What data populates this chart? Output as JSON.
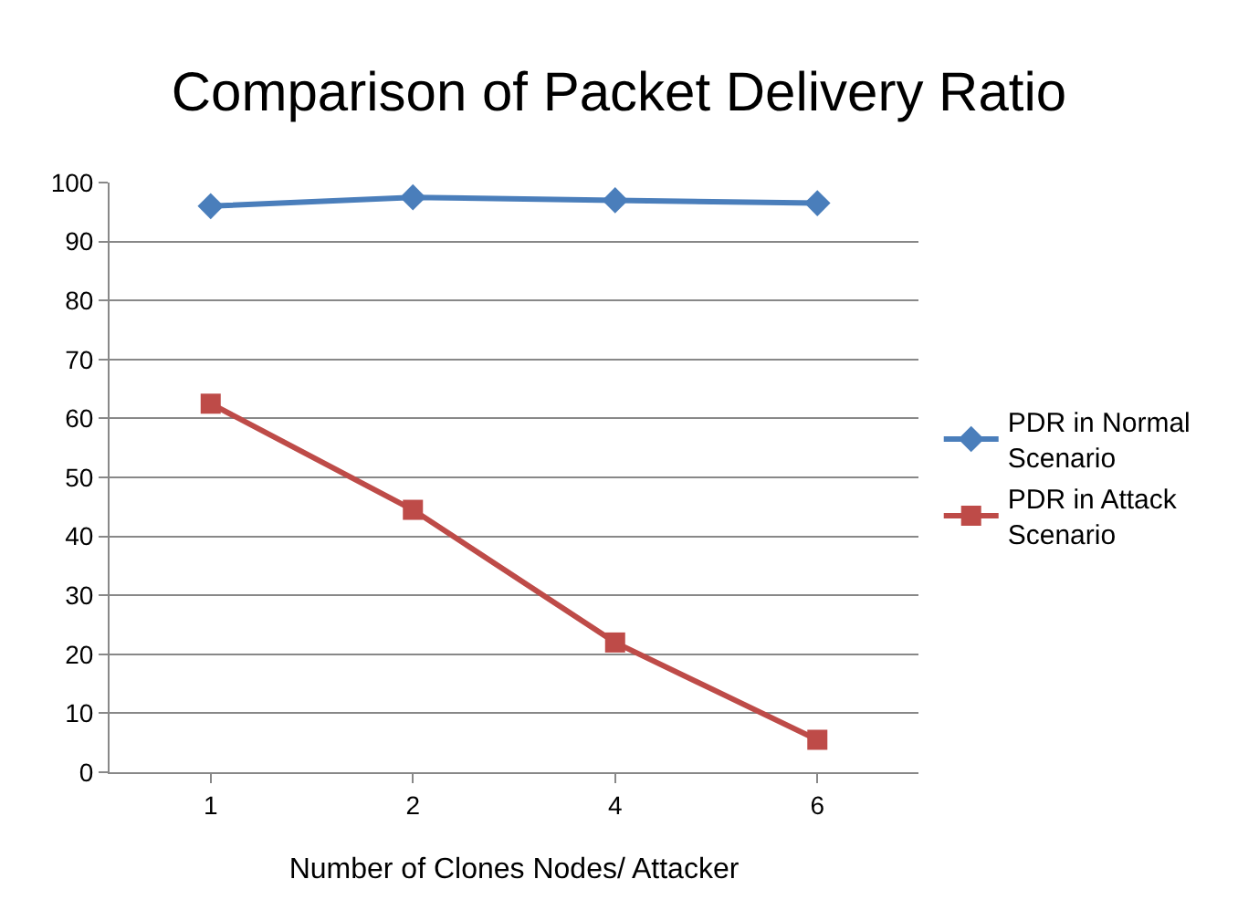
{
  "chart_data": {
    "type": "line",
    "title": "Comparison of Packet Delivery Ratio",
    "xlabel": "Number of Clones Nodes/ Attacker",
    "categories": [
      "1",
      "2",
      "4",
      "6"
    ],
    "series": [
      {
        "name": "PDR in Normal Scenario",
        "color": "#4a7ebb",
        "marker": "diamond",
        "values": [
          96,
          97.5,
          97,
          96.5
        ]
      },
      {
        "name": "PDR in Attack Scenario",
        "color": "#be4b48",
        "marker": "square",
        "values": [
          62.5,
          44.5,
          22,
          5.5
        ]
      }
    ],
    "ylim": [
      0,
      100
    ],
    "yticks": [
      0,
      10,
      20,
      30,
      40,
      50,
      60,
      70,
      80,
      90,
      100
    ],
    "grid": "y",
    "legend": "right",
    "line_style": "solid"
  }
}
